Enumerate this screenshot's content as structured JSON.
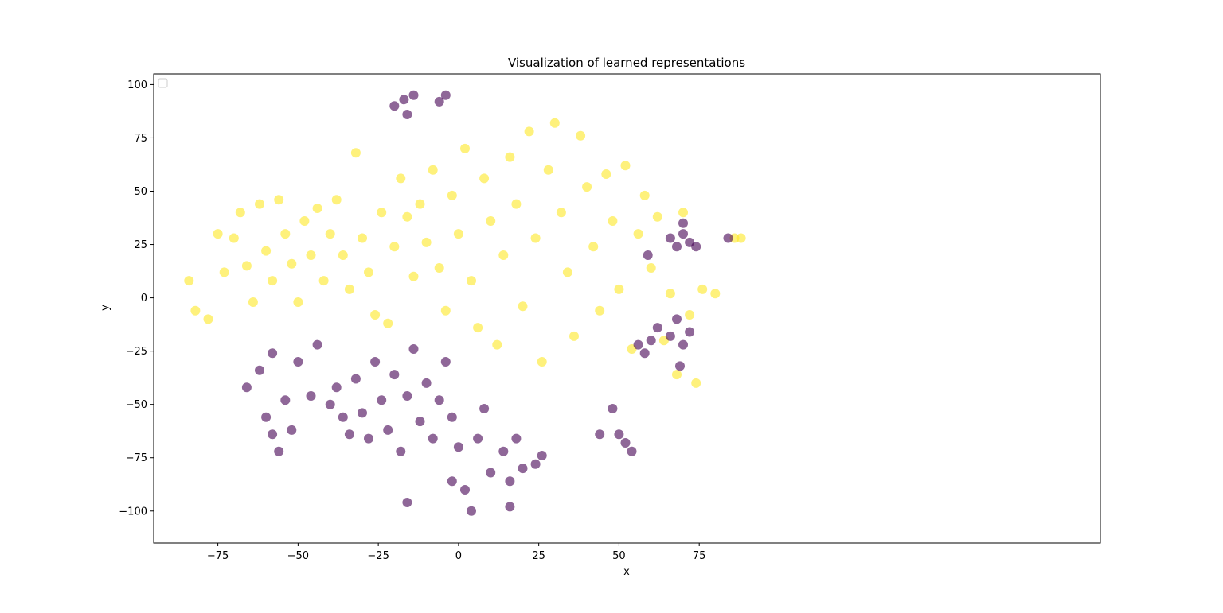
{
  "chart_data": {
    "type": "scatter",
    "title": "Visualization of learned representations",
    "xlabel": "x",
    "ylabel": "y",
    "xlim": [
      -95,
      200
    ],
    "ylim": [
      -115,
      105
    ],
    "xticks": [
      -75,
      -50,
      -25,
      0,
      25,
      50,
      75
    ],
    "yticks": [
      -100,
      -75,
      -50,
      -25,
      0,
      25,
      50,
      75,
      100
    ],
    "xtick_labels": [
      "−75",
      "−50",
      "−25",
      "0",
      "25",
      "50",
      "75"
    ],
    "ytick_labels": [
      "−100",
      "−75",
      "−50",
      "−25",
      "0",
      "25",
      "50",
      "75",
      "100"
    ],
    "legend": {
      "placement": "upper-left",
      "entries": []
    },
    "grid": false,
    "series": [
      {
        "color": "#fde725",
        "alpha": 0.6,
        "points": [
          [
            -84,
            8
          ],
          [
            -82,
            -6
          ],
          [
            -78,
            -10
          ],
          [
            -75,
            30
          ],
          [
            -73,
            12
          ],
          [
            -70,
            28
          ],
          [
            -68,
            40
          ],
          [
            -66,
            15
          ],
          [
            -64,
            -2
          ],
          [
            -62,
            44
          ],
          [
            -60,
            22
          ],
          [
            -58,
            8
          ],
          [
            -56,
            46
          ],
          [
            -54,
            30
          ],
          [
            -52,
            16
          ],
          [
            -50,
            -2
          ],
          [
            -48,
            36
          ],
          [
            -46,
            20
          ],
          [
            -44,
            42
          ],
          [
            -42,
            8
          ],
          [
            -40,
            30
          ],
          [
            -38,
            46
          ],
          [
            -36,
            20
          ],
          [
            -34,
            4
          ],
          [
            -32,
            68
          ],
          [
            -30,
            28
          ],
          [
            -28,
            12
          ],
          [
            -26,
            -8
          ],
          [
            -24,
            40
          ],
          [
            -22,
            -12
          ],
          [
            -20,
            24
          ],
          [
            -18,
            56
          ],
          [
            -16,
            38
          ],
          [
            -14,
            10
          ],
          [
            -12,
            44
          ],
          [
            -10,
            26
          ],
          [
            -8,
            60
          ],
          [
            -6,
            14
          ],
          [
            -4,
            -6
          ],
          [
            -2,
            48
          ],
          [
            0,
            30
          ],
          [
            2,
            70
          ],
          [
            4,
            8
          ],
          [
            6,
            -14
          ],
          [
            8,
            56
          ],
          [
            10,
            36
          ],
          [
            12,
            -22
          ],
          [
            14,
            20
          ],
          [
            16,
            66
          ],
          [
            18,
            44
          ],
          [
            20,
            -4
          ],
          [
            22,
            78
          ],
          [
            24,
            28
          ],
          [
            26,
            -30
          ],
          [
            28,
            60
          ],
          [
            30,
            82
          ],
          [
            32,
            40
          ],
          [
            34,
            12
          ],
          [
            36,
            -18
          ],
          [
            38,
            76
          ],
          [
            40,
            52
          ],
          [
            42,
            24
          ],
          [
            44,
            -6
          ],
          [
            46,
            58
          ],
          [
            48,
            36
          ],
          [
            50,
            4
          ],
          [
            52,
            62
          ],
          [
            54,
            -24
          ],
          [
            56,
            30
          ],
          [
            58,
            48
          ],
          [
            60,
            14
          ],
          [
            62,
            38
          ],
          [
            64,
            -20
          ],
          [
            66,
            2
          ],
          [
            68,
            -36
          ],
          [
            70,
            40
          ],
          [
            72,
            -8
          ],
          [
            74,
            -40
          ],
          [
            76,
            4
          ],
          [
            80,
            2
          ],
          [
            86,
            28
          ],
          [
            88,
            28
          ]
        ]
      },
      {
        "color": "#440154",
        "alpha": 0.6,
        "points": [
          [
            -20,
            90
          ],
          [
            -17,
            93
          ],
          [
            -14,
            95
          ],
          [
            -16,
            86
          ],
          [
            -6,
            92
          ],
          [
            -4,
            95
          ],
          [
            -66,
            -42
          ],
          [
            -62,
            -34
          ],
          [
            -58,
            -26
          ],
          [
            -60,
            -56
          ],
          [
            -58,
            -64
          ],
          [
            -56,
            -72
          ],
          [
            -54,
            -48
          ],
          [
            -52,
            -62
          ],
          [
            -50,
            -30
          ],
          [
            -46,
            -46
          ],
          [
            -44,
            -22
          ],
          [
            -40,
            -50
          ],
          [
            -38,
            -42
          ],
          [
            -36,
            -56
          ],
          [
            -34,
            -64
          ],
          [
            -32,
            -38
          ],
          [
            -30,
            -54
          ],
          [
            -28,
            -66
          ],
          [
            -26,
            -30
          ],
          [
            -24,
            -48
          ],
          [
            -22,
            -62
          ],
          [
            -20,
            -36
          ],
          [
            -18,
            -72
          ],
          [
            -16,
            -46
          ],
          [
            -14,
            -24
          ],
          [
            -12,
            -58
          ],
          [
            -10,
            -40
          ],
          [
            -8,
            -66
          ],
          [
            -6,
            -48
          ],
          [
            -4,
            -30
          ],
          [
            -2,
            -56
          ],
          [
            0,
            -70
          ],
          [
            2,
            -90
          ],
          [
            4,
            -100
          ],
          [
            -2,
            -86
          ],
          [
            6,
            -66
          ],
          [
            8,
            -52
          ],
          [
            10,
            -82
          ],
          [
            14,
            -72
          ],
          [
            16,
            -86
          ],
          [
            18,
            -66
          ],
          [
            20,
            -80
          ],
          [
            24,
            -78
          ],
          [
            26,
            -74
          ],
          [
            16,
            -98
          ],
          [
            -16,
            -96
          ],
          [
            48,
            -52
          ],
          [
            50,
            -64
          ],
          [
            52,
            -68
          ],
          [
            54,
            -72
          ],
          [
            44,
            -64
          ],
          [
            60,
            -20
          ],
          [
            62,
            -14
          ],
          [
            66,
            -18
          ],
          [
            68,
            -10
          ],
          [
            70,
            -22
          ],
          [
            72,
            -16
          ],
          [
            66,
            28
          ],
          [
            68,
            24
          ],
          [
            70,
            30
          ],
          [
            72,
            26
          ],
          [
            74,
            24
          ],
          [
            84,
            28
          ],
          [
            70,
            35
          ],
          [
            58,
            -26
          ],
          [
            56,
            -22
          ],
          [
            59,
            20
          ],
          [
            69,
            -32
          ]
        ]
      }
    ]
  }
}
